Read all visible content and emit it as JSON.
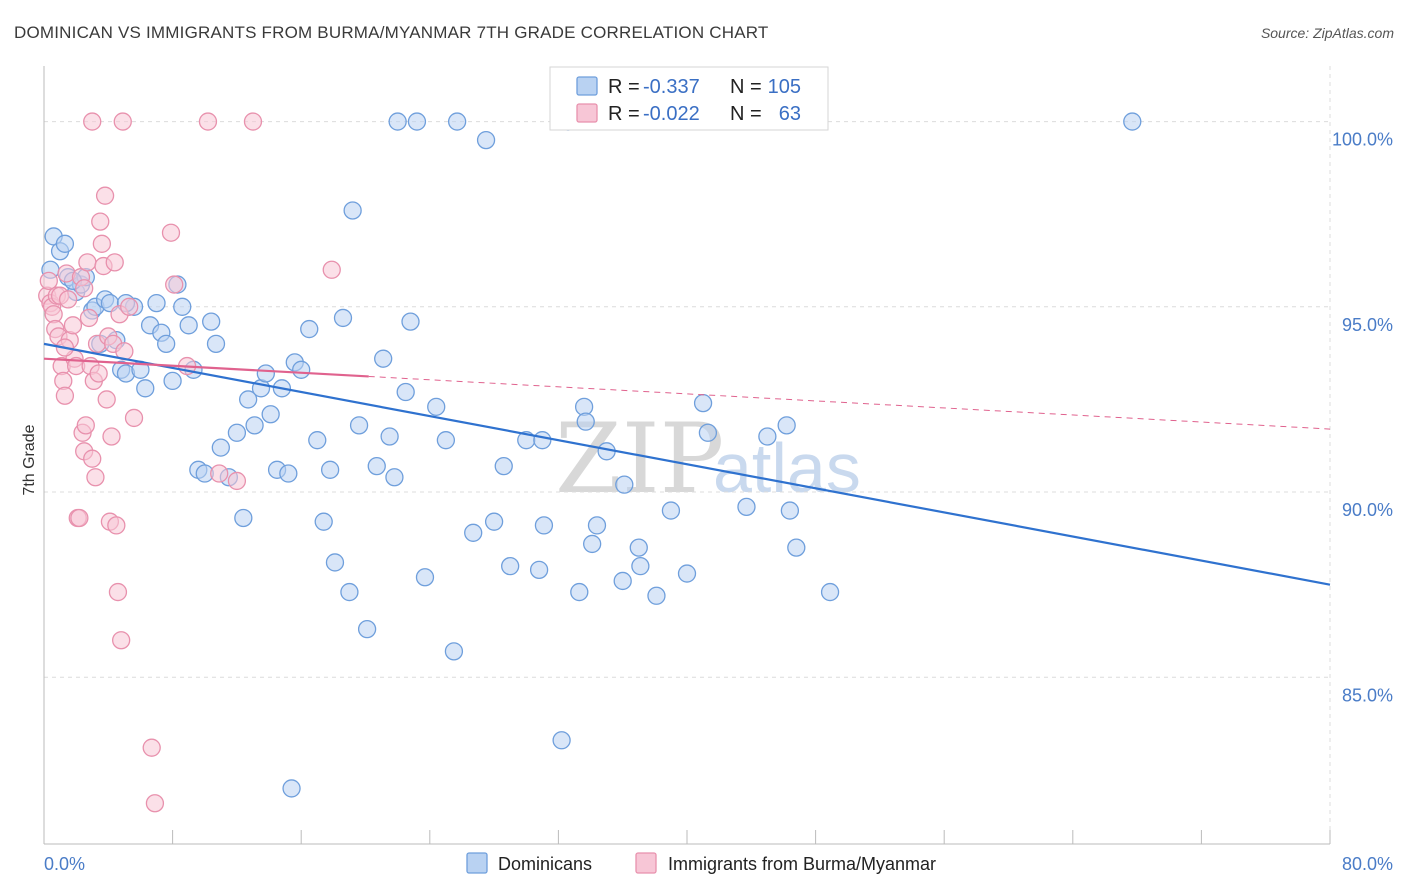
{
  "title": "DOMINICAN VS IMMIGRANTS FROM BURMA/MYANMAR 7TH GRADE CORRELATION CHART",
  "source": "Source: ZipAtlas.com",
  "watermark": {
    "zip": "ZIP",
    "atlas": "atlas"
  },
  "colors": {
    "blue_fill": "#b9d2f2",
    "blue_stroke": "#6f9fdc",
    "blue_line": "#2f72cf",
    "pink_fill": "#f7c6d6",
    "pink_stroke": "#e891ad",
    "pink_line": "#e0628e",
    "tick_text": "#4a7cc7"
  },
  "stats_legend": {
    "rows": [
      {
        "r_label": "R =",
        "r_value": "-0.337",
        "n_label": "N =",
        "n_value": "105"
      },
      {
        "r_label": "R =",
        "r_value": "-0.022",
        "n_label": "N =",
        "n_value": "63"
      }
    ]
  },
  "bottom_legend": [
    "Dominicans",
    "Immigrants from Burma/Myanmar"
  ],
  "chart_data": {
    "type": "scatter",
    "title": "DOMINICAN VS IMMIGRANTS FROM BURMA/MYANMAR 7TH GRADE CORRELATION CHART",
    "xlabel": "",
    "ylabel": "7th Grade",
    "xlim": [
      0,
      80
    ],
    "ylim": [
      80.5,
      101.5
    ],
    "x_tick_labels": [
      {
        "value": 0,
        "label": "0.0%"
      },
      {
        "value": 80,
        "label": "80.0%"
      }
    ],
    "y_tick_labels": [
      {
        "value": 100,
        "label": "100.0%"
      },
      {
        "value": 95,
        "label": "95.0%"
      },
      {
        "value": 90,
        "label": "90.0%"
      },
      {
        "value": 85,
        "label": "85.0%"
      }
    ],
    "x_minor_ticks": [
      0,
      8,
      16,
      24,
      32,
      40,
      48,
      56,
      64,
      72,
      80
    ],
    "grid": true,
    "legend_position": "bottom",
    "series": [
      {
        "name": "Dominicans",
        "r": -0.337,
        "n": 105,
        "trend": {
          "x": [
            0,
            80
          ],
          "y": [
            94.0,
            87.5
          ],
          "dashed_from": null
        },
        "points": [
          [
            0.4,
            96.0
          ],
          [
            0.6,
            96.9
          ],
          [
            1.0,
            96.5
          ],
          [
            1.3,
            96.7
          ],
          [
            1.5,
            95.8
          ],
          [
            2.0,
            95.4
          ],
          [
            2.3,
            95.6
          ],
          [
            2.6,
            95.8
          ],
          [
            3.0,
            94.9
          ],
          [
            3.2,
            95.0
          ],
          [
            3.8,
            95.2
          ],
          [
            4.1,
            95.1
          ],
          [
            3.5,
            94.0
          ],
          [
            4.5,
            94.1
          ],
          [
            4.8,
            93.3
          ],
          [
            5.1,
            93.2
          ],
          [
            5.6,
            95.0
          ],
          [
            6.0,
            93.3
          ],
          [
            6.3,
            92.8
          ],
          [
            6.6,
            94.5
          ],
          [
            7.0,
            95.1
          ],
          [
            7.3,
            94.3
          ],
          [
            7.6,
            94.0
          ],
          [
            8.0,
            93.0
          ],
          [
            8.3,
            95.6
          ],
          [
            8.6,
            95.0
          ],
          [
            9.0,
            94.5
          ],
          [
            9.3,
            93.3
          ],
          [
            9.6,
            90.6
          ],
          [
            10.0,
            90.5
          ],
          [
            10.4,
            94.6
          ],
          [
            10.7,
            94.0
          ],
          [
            11.0,
            91.2
          ],
          [
            11.5,
            90.4
          ],
          [
            12.0,
            91.6
          ],
          [
            12.4,
            89.3
          ],
          [
            12.7,
            92.5
          ],
          [
            13.1,
            91.8
          ],
          [
            13.5,
            92.8
          ],
          [
            13.8,
            93.2
          ],
          [
            14.1,
            92.1
          ],
          [
            14.5,
            90.6
          ],
          [
            14.8,
            92.8
          ],
          [
            15.2,
            90.5
          ],
          [
            15.6,
            93.5
          ],
          [
            16.0,
            93.3
          ],
          [
            16.5,
            94.4
          ],
          [
            17.0,
            91.4
          ],
          [
            17.4,
            89.2
          ],
          [
            17.8,
            90.6
          ],
          [
            18.1,
            88.1
          ],
          [
            18.6,
            94.7
          ],
          [
            19.0,
            87.3
          ],
          [
            19.2,
            97.6
          ],
          [
            19.6,
            91.8
          ],
          [
            20.1,
            86.3
          ],
          [
            20.7,
            90.7
          ],
          [
            21.1,
            93.6
          ],
          [
            21.5,
            91.5
          ],
          [
            21.8,
            90.4
          ],
          [
            22.0,
            100.0
          ],
          [
            22.5,
            92.7
          ],
          [
            22.8,
            94.6
          ],
          [
            23.2,
            100.0
          ],
          [
            23.7,
            87.7
          ],
          [
            24.4,
            92.3
          ],
          [
            25.0,
            91.4
          ],
          [
            25.5,
            85.7
          ],
          [
            25.7,
            100.0
          ],
          [
            26.7,
            88.9
          ],
          [
            27.5,
            99.5
          ],
          [
            28.0,
            89.2
          ],
          [
            28.6,
            90.7
          ],
          [
            29.0,
            88.0
          ],
          [
            30.0,
            91.4
          ],
          [
            30.8,
            87.9
          ],
          [
            31.0,
            91.4
          ],
          [
            31.1,
            89.1
          ],
          [
            32.2,
            83.3
          ],
          [
            32.6,
            100.0
          ],
          [
            33.3,
            87.3
          ],
          [
            33.6,
            92.3
          ],
          [
            33.7,
            91.9
          ],
          [
            34.1,
            88.6
          ],
          [
            34.4,
            89.1
          ],
          [
            35.0,
            91.1
          ],
          [
            36.0,
            87.6
          ],
          [
            36.1,
            90.2
          ],
          [
            37.0,
            88.5
          ],
          [
            37.1,
            88.0
          ],
          [
            38.1,
            87.2
          ],
          [
            39.0,
            89.5
          ],
          [
            40.0,
            87.8
          ],
          [
            41.0,
            92.4
          ],
          [
            41.3,
            91.6
          ],
          [
            43.7,
            89.6
          ],
          [
            45.0,
            91.5
          ],
          [
            46.2,
            91.8
          ],
          [
            46.4,
            89.5
          ],
          [
            46.8,
            88.5
          ],
          [
            48.9,
            87.3
          ],
          [
            67.7,
            100.0
          ],
          [
            15.4,
            82.0
          ],
          [
            5.1,
            95.1
          ],
          [
            1.8,
            95.7
          ]
        ]
      },
      {
        "name": "Immigrants from Burma/Myanmar",
        "r": -0.022,
        "n": 63,
        "trend": {
          "x": [
            0,
            80
          ],
          "y": [
            93.6,
            91.7
          ],
          "solid_until": 20.2
        },
        "points": [
          [
            0.2,
            95.3
          ],
          [
            0.3,
            95.7
          ],
          [
            0.4,
            95.1
          ],
          [
            0.5,
            95.0
          ],
          [
            0.6,
            94.8
          ],
          [
            0.7,
            94.4
          ],
          [
            0.8,
            95.3
          ],
          [
            0.9,
            94.2
          ],
          [
            1.0,
            95.3
          ],
          [
            1.1,
            93.4
          ],
          [
            1.2,
            93.0
          ],
          [
            1.3,
            92.6
          ],
          [
            1.4,
            95.9
          ],
          [
            1.5,
            95.2
          ],
          [
            1.6,
            94.1
          ],
          [
            1.8,
            94.5
          ],
          [
            1.9,
            93.6
          ],
          [
            2.0,
            93.4
          ],
          [
            2.1,
            89.3
          ],
          [
            2.2,
            89.3
          ],
          [
            2.3,
            95.8
          ],
          [
            2.4,
            91.6
          ],
          [
            2.5,
            91.1
          ],
          [
            2.6,
            91.8
          ],
          [
            2.7,
            96.2
          ],
          [
            2.8,
            94.7
          ],
          [
            2.9,
            93.4
          ],
          [
            3.0,
            90.9
          ],
          [
            3.1,
            93.0
          ],
          [
            3.2,
            90.4
          ],
          [
            3.3,
            94.0
          ],
          [
            3.4,
            93.2
          ],
          [
            3.5,
            97.3
          ],
          [
            3.6,
            96.7
          ],
          [
            3.7,
            96.1
          ],
          [
            3.8,
            98.0
          ],
          [
            3.9,
            92.5
          ],
          [
            4.0,
            94.2
          ],
          [
            4.1,
            89.2
          ],
          [
            4.2,
            91.5
          ],
          [
            4.3,
            94.0
          ],
          [
            4.4,
            96.2
          ],
          [
            4.5,
            89.1
          ],
          [
            4.6,
            87.3
          ],
          [
            4.7,
            94.8
          ],
          [
            4.8,
            86.0
          ],
          [
            5.0,
            93.8
          ],
          [
            5.3,
            95.0
          ],
          [
            5.6,
            92.0
          ],
          [
            6.7,
            83.1
          ],
          [
            6.9,
            81.6
          ],
          [
            7.9,
            97.0
          ],
          [
            8.1,
            95.6
          ],
          [
            8.9,
            93.4
          ],
          [
            10.9,
            90.5
          ],
          [
            12.0,
            90.3
          ],
          [
            13.0,
            100.0
          ],
          [
            17.9,
            96.0
          ],
          [
            3.0,
            100.0
          ],
          [
            4.9,
            100.0
          ],
          [
            10.2,
            100.0
          ],
          [
            2.5,
            95.5
          ],
          [
            1.3,
            93.9
          ]
        ]
      }
    ]
  }
}
